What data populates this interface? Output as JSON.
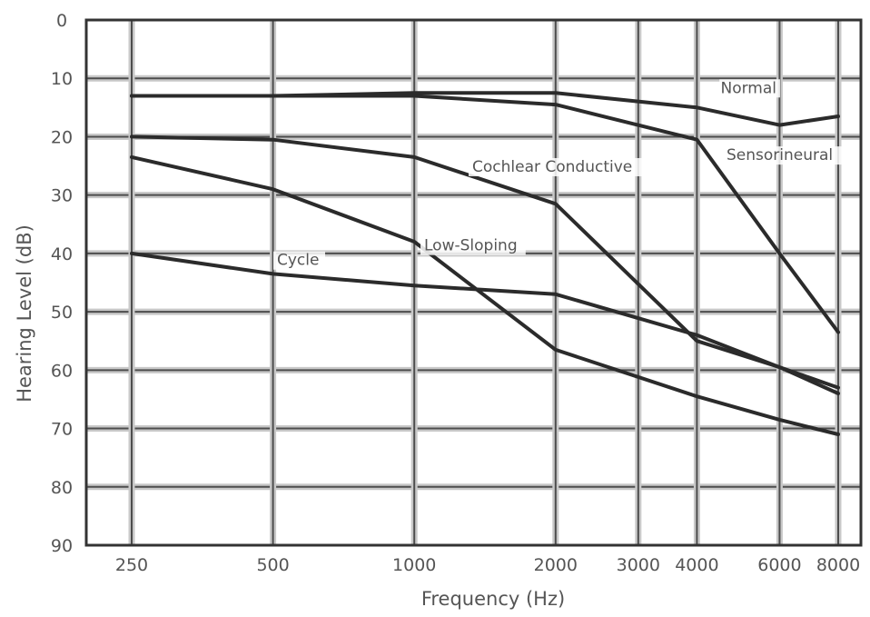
{
  "chart_data": {
    "type": "line",
    "title": "",
    "xlabel": "Frequency (Hz)",
    "ylabel": "Hearing Level (dB)",
    "x_scale": "log",
    "y_inverted": true,
    "grid": true,
    "ylim": [
      0,
      90
    ],
    "x_ticks": [
      250,
      500,
      1000,
      2000,
      3000,
      4000,
      6000,
      8000
    ],
    "x_tick_labels": [
      "250",
      "500",
      "1000",
      "2000",
      "3000",
      "4000",
      "6000",
      "8000"
    ],
    "y_ticks": [
      0,
      10,
      20,
      30,
      40,
      50,
      60,
      70,
      80,
      90
    ],
    "y_tick_labels": [
      "0",
      "10",
      "20",
      "30",
      "40",
      "50",
      "60",
      "70",
      "80",
      "90"
    ],
    "series": [
      {
        "name": "Normal",
        "x": [
          250,
          500,
          1000,
          2000,
          4000,
          6000,
          8000
        ],
        "y": [
          13,
          13,
          12.5,
          12.5,
          15,
          18,
          16.5
        ]
      },
      {
        "name": "Sensorineural",
        "x": [
          250,
          500,
          1000,
          2000,
          4000,
          6000,
          8000
        ],
        "y": [
          13,
          13,
          13,
          14.5,
          20.5,
          40,
          53.5
        ]
      },
      {
        "name": "Cochlear Conductive",
        "x": [
          250,
          500,
          1000,
          2000,
          4000,
          6000,
          8000
        ],
        "y": [
          20,
          20.5,
          23.5,
          31.5,
          55,
          59.5,
          64
        ]
      },
      {
        "name": "Low-Sloping",
        "x": [
          250,
          500,
          1000,
          2000,
          4000,
          6000,
          8000
        ],
        "y": [
          23.5,
          29,
          38,
          56.5,
          64.5,
          68.5,
          71
        ]
      },
      {
        "name": "Cycle",
        "x": [
          250,
          500,
          1000,
          2000,
          4000,
          6000,
          8000
        ],
        "y": [
          40,
          43.5,
          45.5,
          47,
          54,
          59.5,
          63
        ]
      }
    ],
    "colors": {
      "curve": "#2b2b2b",
      "grid": "#4d4d4d",
      "grid_light": "#c8c8c8",
      "frame": "#333333"
    }
  }
}
